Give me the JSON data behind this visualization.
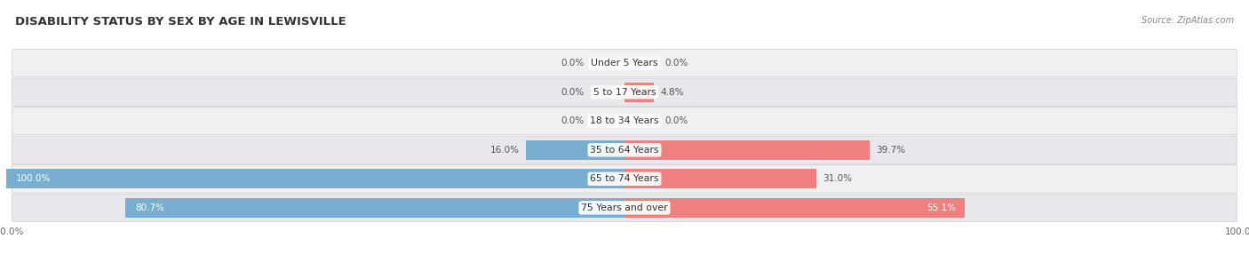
{
  "title": "DISABILITY STATUS BY SEX BY AGE IN LEWISVILLE",
  "source": "Source: ZipAtlas.com",
  "categories": [
    "Under 5 Years",
    "5 to 17 Years",
    "18 to 34 Years",
    "35 to 64 Years",
    "65 to 74 Years",
    "75 Years and over"
  ],
  "male_values": [
    0.0,
    0.0,
    0.0,
    16.0,
    100.0,
    80.7
  ],
  "female_values": [
    0.0,
    4.8,
    0.0,
    39.7,
    31.0,
    55.1
  ],
  "male_color": "#7aaed0",
  "female_color": "#f08080",
  "bar_height": 0.68,
  "figsize": [
    14.06,
    3.05
  ],
  "title_fontsize": 9.5,
  "label_fontsize": 7.5,
  "category_fontsize": 7.8,
  "axis_tick_fontsize": 7.5,
  "legend_fontsize": 8,
  "row_bg_color": "#f0f0f2",
  "row_bg_color_alt": "#e8e8ec"
}
